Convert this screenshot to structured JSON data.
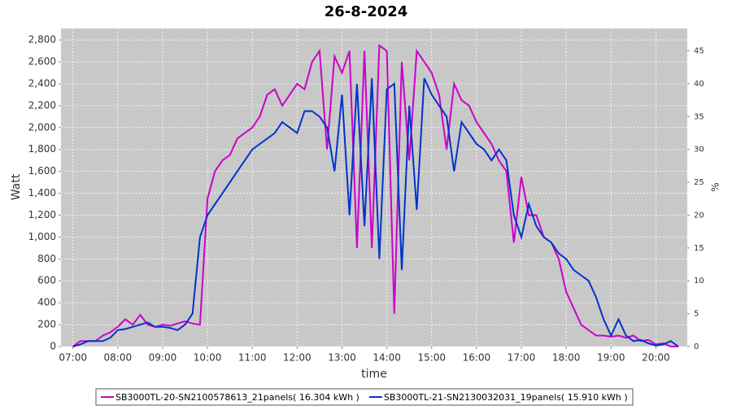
{
  "chart_data": {
    "type": "line",
    "title": "26-8-2024",
    "x_label": "time",
    "y_label": "Watt",
    "y2_label": "%",
    "x": [
      "07:00",
      "07:10",
      "07:20",
      "07:30",
      "07:40",
      "07:50",
      "08:00",
      "08:10",
      "08:20",
      "08:30",
      "08:40",
      "08:50",
      "09:00",
      "09:10",
      "09:20",
      "09:30",
      "09:40",
      "09:50",
      "10:00",
      "10:10",
      "10:20",
      "10:30",
      "10:40",
      "10:50",
      "11:00",
      "11:10",
      "11:20",
      "11:30",
      "11:40",
      "11:50",
      "12:00",
      "12:10",
      "12:20",
      "12:30",
      "12:40",
      "12:50",
      "13:00",
      "13:10",
      "13:20",
      "13:30",
      "13:40",
      "13:50",
      "14:00",
      "14:10",
      "14:20",
      "14:30",
      "14:40",
      "14:50",
      "15:00",
      "15:10",
      "15:20",
      "15:30",
      "15:40",
      "15:50",
      "16:00",
      "16:10",
      "16:20",
      "16:30",
      "16:40",
      "16:50",
      "17:00",
      "17:10",
      "17:20",
      "17:30",
      "17:40",
      "17:50",
      "18:00",
      "18:10",
      "18:20",
      "18:30",
      "18:40",
      "18:50",
      "19:00",
      "19:10",
      "19:20",
      "19:30",
      "19:40",
      "19:50",
      "20:00",
      "20:10",
      "20:20",
      "20:30"
    ],
    "series": [
      {
        "name": "SB3000TL-20-SN2100578613_21panels( 16.304 kWh  )",
        "color": "#cc00cc",
        "values": [
          0,
          50,
          50,
          50,
          100,
          130,
          180,
          250,
          200,
          290,
          200,
          180,
          200,
          190,
          210,
          230,
          210,
          200,
          1350,
          1600,
          1700,
          1750,
          1900,
          1950,
          2000,
          2100,
          2300,
          2350,
          2200,
          2300,
          2400,
          2350,
          2600,
          2700,
          1800,
          2650,
          2500,
          2700,
          900,
          2700,
          900,
          2750,
          2700,
          300,
          2600,
          1700,
          2700,
          2600,
          2500,
          2300,
          1800,
          2400,
          2250,
          2200,
          2050,
          1950,
          1850,
          1700,
          1600,
          950,
          1550,
          1200,
          1200,
          1000,
          950,
          800,
          500,
          350,
          200,
          150,
          100,
          100,
          90,
          100,
          80,
          100,
          50,
          60,
          20,
          30,
          0,
          0
        ]
      },
      {
        "name": "SB3000TL-21-SN2130032031_19panels( 15.910 kWh  )",
        "color": "#0033cc",
        "values": [
          0,
          20,
          50,
          50,
          50,
          80,
          150,
          160,
          180,
          200,
          220,
          180,
          180,
          170,
          150,
          200,
          300,
          1000,
          1200,
          1300,
          1400,
          1500,
          1600,
          1700,
          1800,
          1850,
          1900,
          1950,
          2050,
          2000,
          1950,
          2150,
          2150,
          2100,
          2000,
          1600,
          2300,
          1200,
          2400,
          1100,
          2450,
          800,
          2350,
          2400,
          700,
          2200,
          1250,
          2450,
          2300,
          2200,
          2100,
          1600,
          2050,
          1950,
          1850,
          1800,
          1700,
          1800,
          1700,
          1200,
          1000,
          1300,
          1100,
          1000,
          950,
          850,
          800,
          700,
          650,
          600,
          450,
          250,
          100,
          250,
          100,
          50,
          60,
          30,
          10,
          20,
          50,
          0
        ]
      }
    ],
    "xlim": [
      "06:44",
      "20:42"
    ],
    "xticks": [
      "07:00",
      "08:00",
      "09:00",
      "10:00",
      "11:00",
      "12:00",
      "13:00",
      "14:00",
      "15:00",
      "16:00",
      "17:00",
      "18:00",
      "19:00",
      "20:00"
    ],
    "ylim": [
      0,
      2905
    ],
    "yticks": [
      0,
      200,
      400,
      600,
      800,
      {
        "value": 1000,
        "label": "1,000"
      },
      {
        "value": 1200,
        "label": "1,200"
      },
      {
        "value": 1400,
        "label": "1,400"
      },
      {
        "value": 1600,
        "label": "1,600"
      },
      {
        "value": 1800,
        "label": "1,800"
      },
      {
        "value": 2000,
        "label": "2,000"
      },
      {
        "value": 2200,
        "label": "2,200"
      },
      {
        "value": 2400,
        "label": "2,400"
      },
      {
        "value": 2600,
        "label": "2,600"
      },
      {
        "value": 2800,
        "label": "2,800"
      }
    ],
    "y2lim": [
      0,
      48.4
    ],
    "y2ticks": [
      0,
      5,
      10,
      15,
      20,
      25,
      30,
      35,
      40,
      45
    ],
    "grid": true
  }
}
